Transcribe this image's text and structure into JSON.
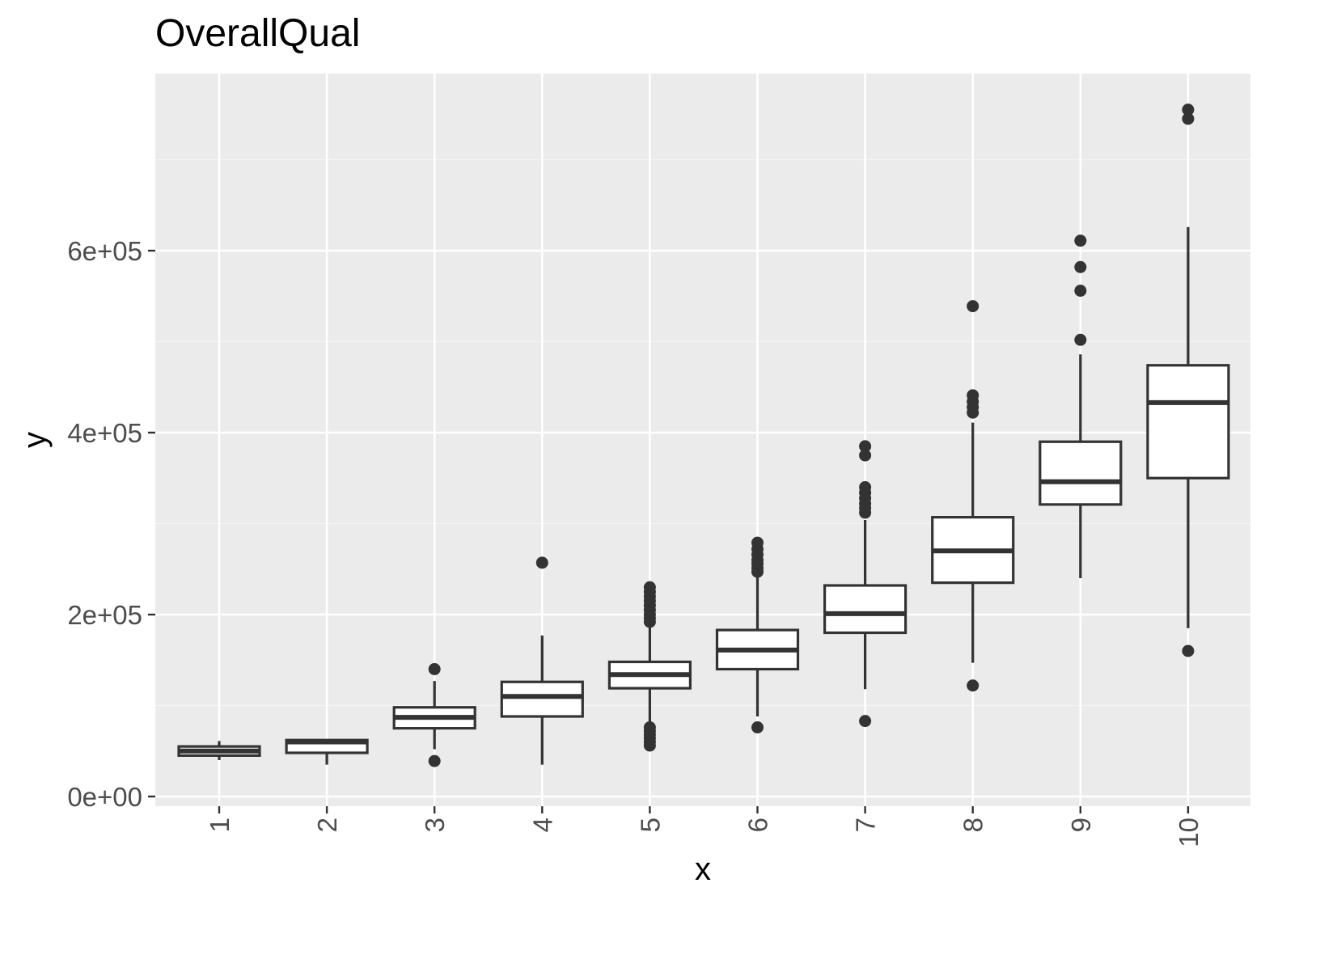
{
  "chart_data": {
    "type": "boxplot",
    "title": "OverallQual",
    "xlabel": "x",
    "ylabel": "y",
    "ylim": [
      0,
      760000
    ],
    "yticks": [
      {
        "value": 0,
        "label": "0e+00"
      },
      {
        "value": 200000,
        "label": "2e+05"
      },
      {
        "value": 400000,
        "label": "4e+05"
      },
      {
        "value": 600000,
        "label": "6e+05"
      }
    ],
    "y_minor_gridlines": [
      100000,
      300000,
      500000,
      700000
    ],
    "categories": [
      "1",
      "2",
      "3",
      "4",
      "5",
      "6",
      "7",
      "8",
      "9",
      "10"
    ],
    "grid": true,
    "boxes": [
      {
        "category": "1",
        "whisker_low": 40000,
        "q1": 45000,
        "median": 50000,
        "q3": 55000,
        "whisker_high": 61000,
        "outliers": []
      },
      {
        "category": "2",
        "whisker_low": 35000,
        "q1": 48000,
        "median": 60000,
        "q3": 62000,
        "whisker_high": 62000,
        "outliers": []
      },
      {
        "category": "3",
        "whisker_low": 52000,
        "q1": 75000,
        "median": 87000,
        "q3": 98000,
        "whisker_high": 127000,
        "outliers": [
          39000,
          140000
        ]
      },
      {
        "category": "4",
        "whisker_low": 35000,
        "q1": 88000,
        "median": 110000,
        "q3": 126000,
        "whisker_high": 177000,
        "outliers": [
          257000
        ]
      },
      {
        "category": "5",
        "whisker_low": 82000,
        "q1": 119000,
        "median": 134000,
        "q3": 148000,
        "whisker_high": 188000,
        "outliers": [
          56000,
          60000,
          64000,
          68000,
          72000,
          76000,
          192000,
          196000,
          200000,
          205000,
          210000,
          215000,
          220000,
          225000,
          230000
        ]
      },
      {
        "category": "6",
        "whisker_low": 88000,
        "q1": 140000,
        "median": 161000,
        "q3": 183000,
        "whisker_high": 243000,
        "outliers": [
          76000,
          247000,
          251000,
          256000,
          260000,
          266000,
          272000,
          279000
        ]
      },
      {
        "category": "7",
        "whisker_low": 118000,
        "q1": 180000,
        "median": 201000,
        "q3": 232000,
        "whisker_high": 304000,
        "outliers": [
          83000,
          312000,
          317000,
          322000,
          328000,
          334000,
          340000,
          375000,
          385000
        ]
      },
      {
        "category": "8",
        "whisker_low": 147000,
        "q1": 235000,
        "median": 270000,
        "q3": 307000,
        "whisker_high": 411000,
        "outliers": [
          122000,
          422000,
          428000,
          434000,
          441000,
          539000
        ]
      },
      {
        "category": "9",
        "whisker_low": 240000,
        "q1": 321000,
        "median": 346000,
        "q3": 390000,
        "whisker_high": 486000,
        "outliers": [
          502000,
          556000,
          582000,
          611000
        ]
      },
      {
        "category": "10",
        "whisker_low": 185000,
        "q1": 350000,
        "median": 433000,
        "q3": 474000,
        "whisker_high": 626000,
        "outliers": [
          160000,
          745000,
          755000
        ]
      }
    ]
  },
  "colors": {
    "panel_background": "#EBEBEB",
    "grid_major": "#FFFFFF",
    "grid_minor": "#F5F5F5",
    "box_stroke": "#333333",
    "box_fill": "#FFFFFF",
    "outlier": "#333333",
    "tick_label": "#4D4D4D",
    "axis_title": "#000000"
  }
}
